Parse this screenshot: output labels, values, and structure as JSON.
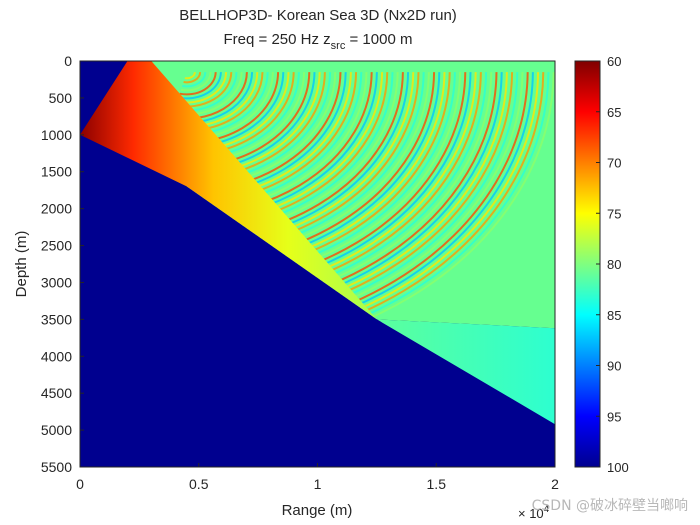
{
  "chart_data": {
    "type": "heatmap",
    "title_line1": "BELLHOP3D- Korean Sea 3D (Nx2D run)",
    "title_line2_prefix": "Freq = 250 Hz    z",
    "title_line2_sub": "src",
    "title_line2_suffix": " = 1000 m",
    "xlabel": "Range (m)",
    "ylabel": "Depth (m)",
    "x_exponent_label": "× 10",
    "x_exponent_power": "4",
    "xlim": [
      0,
      2
    ],
    "ylim": [
      0,
      5500
    ],
    "x_ticks": [
      "0",
      "0.5",
      "1",
      "1.5",
      "2"
    ],
    "x_tick_values": [
      0,
      0.5,
      1,
      1.5,
      2
    ],
    "y_ticks": [
      "0",
      "500",
      "1000",
      "1500",
      "2000",
      "2500",
      "3000",
      "3500",
      "4000",
      "4500",
      "5000",
      "5500"
    ],
    "y_tick_values": [
      0,
      500,
      1000,
      1500,
      2000,
      2500,
      3000,
      3500,
      4000,
      4500,
      5000,
      5500
    ],
    "colorbar": {
      "min": 60,
      "max": 100,
      "colormap": "jet-reversed",
      "ticks": [
        "60",
        "65",
        "70",
        "75",
        "80",
        "85",
        "90",
        "95",
        "100"
      ],
      "tick_values": [
        60,
        65,
        70,
        75,
        80,
        85,
        90,
        95,
        100
      ]
    },
    "source_depth": 1000,
    "bottom_profile": [
      {
        "x": 0,
        "y": 1000
      },
      {
        "x": 0.2,
        "y": 0
      },
      {
        "x": 0.45,
        "y": 1700
      },
      {
        "x": 1.25,
        "y": 3500
      },
      {
        "x": 2.0,
        "y": 4920
      }
    ]
  },
  "watermark": "CSDN @破冰碎壁当啷响",
  "colors": {
    "background": "#00008f",
    "beam_near": "#8b0000",
    "field_far": "#7fff80"
  }
}
